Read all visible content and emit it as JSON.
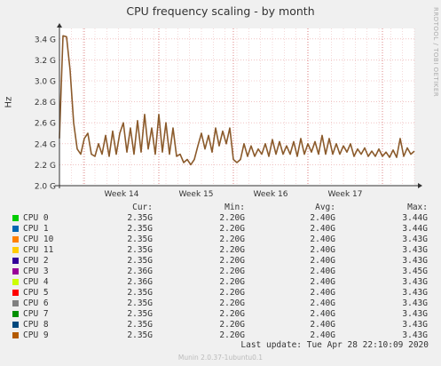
{
  "chart_data": {
    "type": "line",
    "title": "CPU frequency scaling - by month",
    "ylabel": "Hz",
    "side_label": "RRDTOOL / TOBI OETIKER",
    "ylim": [
      2.0,
      3.5
    ],
    "yticks": [
      "2.0 G",
      "2.2 G",
      "2.4 G",
      "2.6 G",
      "2.8 G",
      "3.0 G",
      "3.2 G",
      "3.4 G"
    ],
    "ytick_values": [
      2.0,
      2.2,
      2.4,
      2.6,
      2.8,
      3.0,
      3.2,
      3.4
    ],
    "xticks": [
      "Week 14",
      "Week 15",
      "Week 16",
      "Week 17"
    ],
    "grid": true,
    "line_color": "#8b5a2b",
    "series_points": [
      [
        0.0,
        2.45
      ],
      [
        0.005,
        2.95
      ],
      [
        0.01,
        3.43
      ],
      [
        0.02,
        3.42
      ],
      [
        0.03,
        3.1
      ],
      [
        0.04,
        2.6
      ],
      [
        0.05,
        2.35
      ],
      [
        0.06,
        2.3
      ],
      [
        0.07,
        2.45
      ],
      [
        0.08,
        2.5
      ],
      [
        0.09,
        2.3
      ],
      [
        0.1,
        2.28
      ],
      [
        0.11,
        2.4
      ],
      [
        0.12,
        2.3
      ],
      [
        0.13,
        2.48
      ],
      [
        0.14,
        2.28
      ],
      [
        0.15,
        2.52
      ],
      [
        0.16,
        2.3
      ],
      [
        0.17,
        2.5
      ],
      [
        0.18,
        2.6
      ],
      [
        0.19,
        2.32
      ],
      [
        0.2,
        2.55
      ],
      [
        0.21,
        2.3
      ],
      [
        0.22,
        2.62
      ],
      [
        0.23,
        2.32
      ],
      [
        0.24,
        2.68
      ],
      [
        0.25,
        2.35
      ],
      [
        0.26,
        2.55
      ],
      [
        0.27,
        2.3
      ],
      [
        0.28,
        2.68
      ],
      [
        0.29,
        2.32
      ],
      [
        0.3,
        2.6
      ],
      [
        0.31,
        2.3
      ],
      [
        0.32,
        2.55
      ],
      [
        0.33,
        2.28
      ],
      [
        0.34,
        2.3
      ],
      [
        0.35,
        2.22
      ],
      [
        0.36,
        2.25
      ],
      [
        0.37,
        2.2
      ],
      [
        0.38,
        2.25
      ],
      [
        0.39,
        2.38
      ],
      [
        0.4,
        2.5
      ],
      [
        0.41,
        2.35
      ],
      [
        0.42,
        2.48
      ],
      [
        0.43,
        2.32
      ],
      [
        0.44,
        2.55
      ],
      [
        0.45,
        2.38
      ],
      [
        0.46,
        2.52
      ],
      [
        0.47,
        2.4
      ],
      [
        0.48,
        2.55
      ],
      [
        0.49,
        2.25
      ],
      [
        0.5,
        2.22
      ],
      [
        0.51,
        2.25
      ],
      [
        0.52,
        2.4
      ],
      [
        0.53,
        2.28
      ],
      [
        0.54,
        2.38
      ],
      [
        0.55,
        2.28
      ],
      [
        0.56,
        2.35
      ],
      [
        0.57,
        2.3
      ],
      [
        0.58,
        2.4
      ],
      [
        0.59,
        2.28
      ],
      [
        0.6,
        2.44
      ],
      [
        0.61,
        2.3
      ],
      [
        0.62,
        2.42
      ],
      [
        0.63,
        2.3
      ],
      [
        0.64,
        2.38
      ],
      [
        0.65,
        2.3
      ],
      [
        0.66,
        2.42
      ],
      [
        0.67,
        2.28
      ],
      [
        0.68,
        2.45
      ],
      [
        0.69,
        2.3
      ],
      [
        0.7,
        2.4
      ],
      [
        0.71,
        2.32
      ],
      [
        0.72,
        2.42
      ],
      [
        0.73,
        2.3
      ],
      [
        0.74,
        2.48
      ],
      [
        0.75,
        2.3
      ],
      [
        0.76,
        2.45
      ],
      [
        0.77,
        2.3
      ],
      [
        0.78,
        2.4
      ],
      [
        0.79,
        2.3
      ],
      [
        0.8,
        2.38
      ],
      [
        0.81,
        2.32
      ],
      [
        0.82,
        2.4
      ],
      [
        0.83,
        2.28
      ],
      [
        0.84,
        2.35
      ],
      [
        0.85,
        2.3
      ],
      [
        0.86,
        2.36
      ],
      [
        0.87,
        2.28
      ],
      [
        0.88,
        2.33
      ],
      [
        0.89,
        2.28
      ],
      [
        0.9,
        2.35
      ],
      [
        0.91,
        2.28
      ],
      [
        0.92,
        2.32
      ],
      [
        0.93,
        2.27
      ],
      [
        0.94,
        2.34
      ],
      [
        0.95,
        2.27
      ],
      [
        0.96,
        2.45
      ],
      [
        0.97,
        2.28
      ],
      [
        0.98,
        2.36
      ],
      [
        0.99,
        2.3
      ],
      [
        1.0,
        2.33
      ]
    ],
    "legend_header": {
      "cur": "Cur:",
      "min": "Min:",
      "avg": "Avg:",
      "max": "Max:"
    },
    "legend": [
      {
        "name": "CPU 0",
        "color": "#00cc00",
        "cur": "2.35G",
        "min": "2.20G",
        "avg": "2.40G",
        "max": "3.44G"
      },
      {
        "name": "CPU 1",
        "color": "#0066b3",
        "cur": "2.35G",
        "min": "2.20G",
        "avg": "2.40G",
        "max": "3.44G"
      },
      {
        "name": "CPU 10",
        "color": "#ff8000",
        "cur": "2.35G",
        "min": "2.20G",
        "avg": "2.40G",
        "max": "3.43G"
      },
      {
        "name": "CPU 11",
        "color": "#ffcc00",
        "cur": "2.35G",
        "min": "2.20G",
        "avg": "2.40G",
        "max": "3.43G"
      },
      {
        "name": "CPU 2",
        "color": "#330099",
        "cur": "2.35G",
        "min": "2.20G",
        "avg": "2.40G",
        "max": "3.43G"
      },
      {
        "name": "CPU 3",
        "color": "#990099",
        "cur": "2.36G",
        "min": "2.20G",
        "avg": "2.40G",
        "max": "3.45G"
      },
      {
        "name": "CPU 4",
        "color": "#ccff00",
        "cur": "2.36G",
        "min": "2.20G",
        "avg": "2.40G",
        "max": "3.43G"
      },
      {
        "name": "CPU 5",
        "color": "#ff0000",
        "cur": "2.35G",
        "min": "2.20G",
        "avg": "2.40G",
        "max": "3.43G"
      },
      {
        "name": "CPU 6",
        "color": "#808080",
        "cur": "2.35G",
        "min": "2.20G",
        "avg": "2.40G",
        "max": "3.43G"
      },
      {
        "name": "CPU 7",
        "color": "#008f00",
        "cur": "2.35G",
        "min": "2.20G",
        "avg": "2.40G",
        "max": "3.43G"
      },
      {
        "name": "CPU 8",
        "color": "#00487d",
        "cur": "2.35G",
        "min": "2.20G",
        "avg": "2.40G",
        "max": "3.43G"
      },
      {
        "name": "CPU 9",
        "color": "#b35a00",
        "cur": "2.35G",
        "min": "2.20G",
        "avg": "2.40G",
        "max": "3.43G"
      }
    ],
    "last_update": "Last update: Tue Apr 28 22:10:09 2020",
    "footer": "Munin 2.0.37-1ubuntu0.1"
  }
}
